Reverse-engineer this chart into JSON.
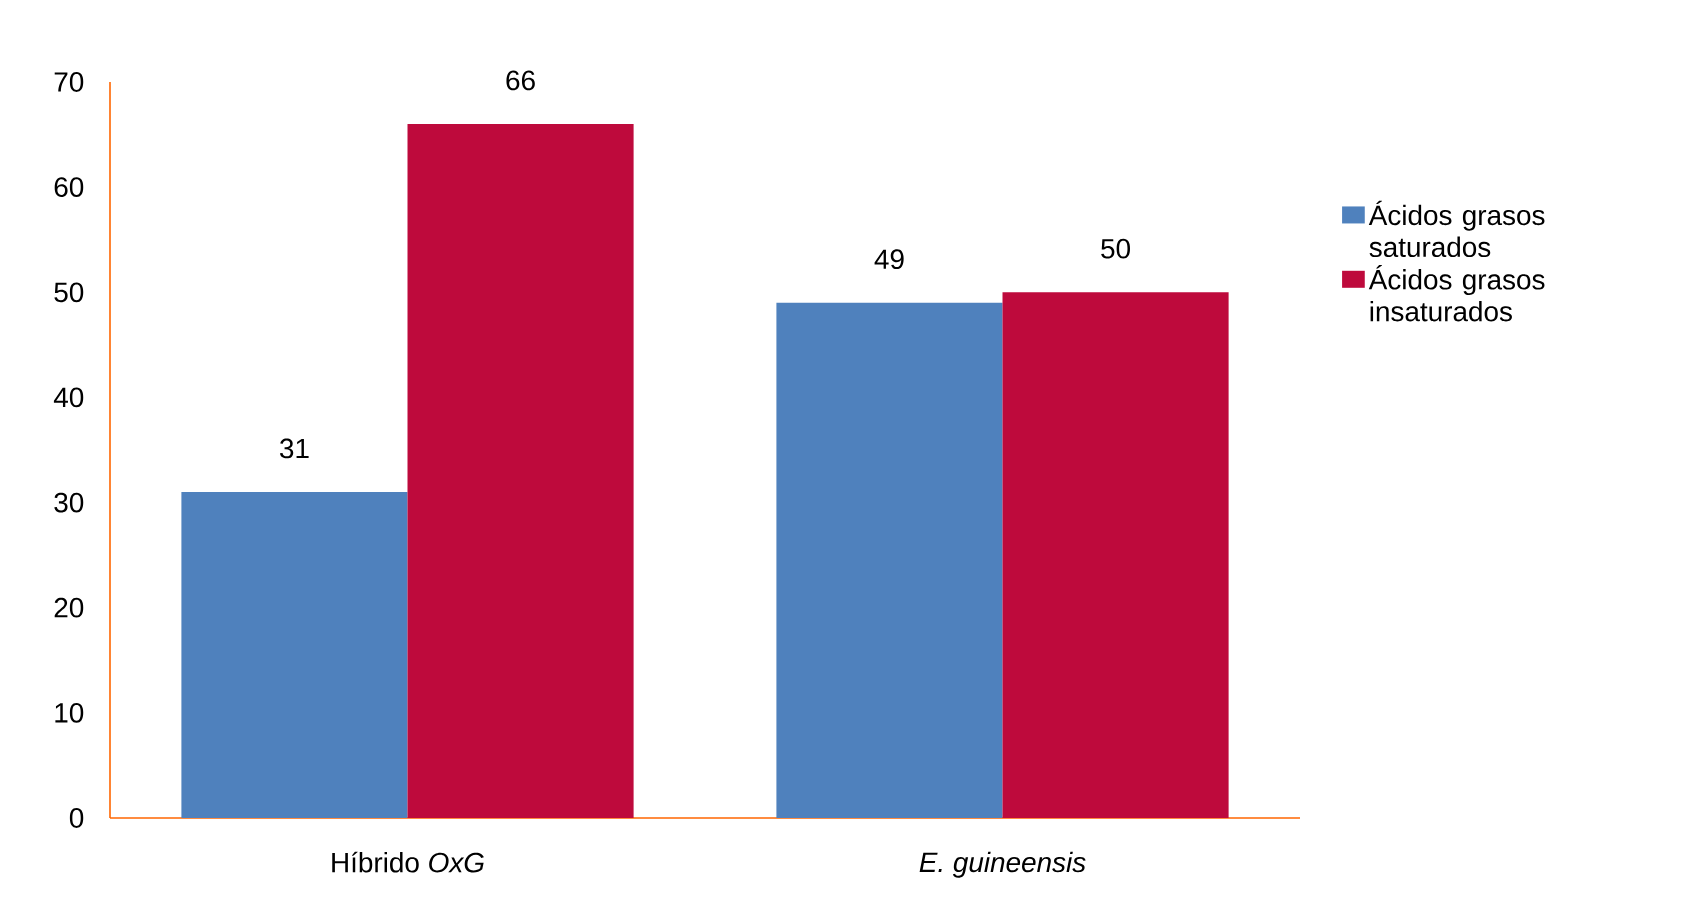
{
  "chart_data": {
    "type": "bar",
    "categories": [
      "Híbrido *OxG*",
      "*E. guineensis*"
    ],
    "series": [
      {
        "name": "Ácidos grasos saturados",
        "color": "#4f81bd",
        "values": [
          31,
          49
        ]
      },
      {
        "name": "Ácidos grasos insaturados",
        "color": "#be0a3c",
        "values": [
          66,
          50
        ]
      }
    ],
    "ylim": [
      0,
      70
    ],
    "yticks": [
      0,
      10,
      20,
      30,
      40,
      50,
      60,
      70
    ],
    "data_labels": true,
    "grid": false,
    "legend": "right"
  }
}
